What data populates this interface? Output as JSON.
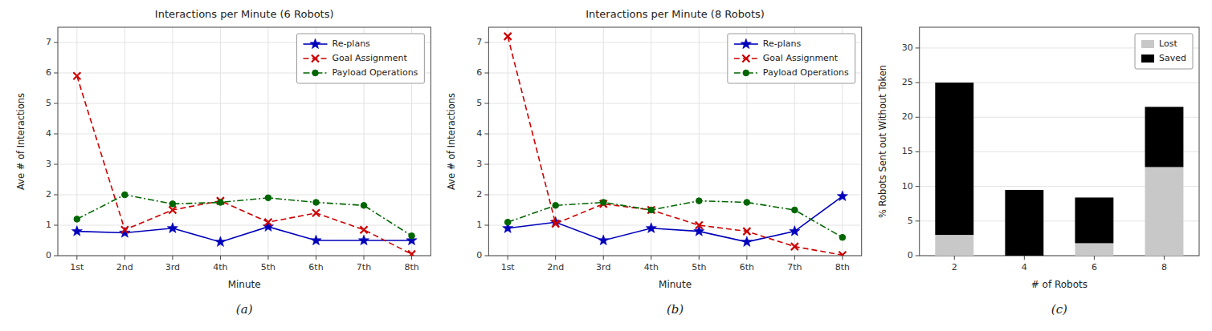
{
  "chart_data": [
    {
      "type": "line",
      "title": "Interactions per Minute (6 Robots)",
      "xlabel": "Minute",
      "ylabel": "Ave # of Interactions",
      "categories": [
        "1st",
        "2nd",
        "3rd",
        "4th",
        "5th",
        "6th",
        "7th",
        "8th"
      ],
      "series": [
        {
          "name": "Re-plans",
          "color": "#0000bb",
          "marker": "star",
          "line_style": "solid",
          "values": [
            0.8,
            0.75,
            0.9,
            0.45,
            0.95,
            0.5,
            0.5,
            0.5
          ]
        },
        {
          "name": "Goal Assignment",
          "color": "#cc0000",
          "marker": "x",
          "line_style": "dashed",
          "values": [
            5.9,
            0.85,
            1.5,
            1.8,
            1.1,
            1.4,
            0.85,
            0.05
          ]
        },
        {
          "name": "Payload Operations",
          "color": "#006600",
          "marker": "circle",
          "line_style": "dashdot",
          "values": [
            1.2,
            2.0,
            1.7,
            1.75,
            1.9,
            1.75,
            1.65,
            0.65
          ]
        }
      ],
      "ylim": [
        0,
        7.5
      ],
      "yticks": [
        0,
        1,
        2,
        3,
        4,
        5,
        6,
        7
      ],
      "grid": true,
      "legend": "upper right",
      "annotations": [
        "(a)"
      ]
    },
    {
      "type": "line",
      "title": "Interactions per Minute (8 Robots)",
      "xlabel": "Minute",
      "ylabel": "Ave # of Interactions",
      "categories": [
        "1st",
        "2nd",
        "3rd",
        "4th",
        "5th",
        "6th",
        "7th",
        "8th"
      ],
      "series": [
        {
          "name": "Re-plans",
          "color": "#0000bb",
          "marker": "star",
          "line_style": "solid",
          "values": [
            0.9,
            1.1,
            0.5,
            0.9,
            0.8,
            0.45,
            0.8,
            1.95
          ]
        },
        {
          "name": "Goal Assignment",
          "color": "#cc0000",
          "marker": "x",
          "line_style": "dashed",
          "values": [
            7.2,
            1.05,
            1.7,
            1.5,
            1.0,
            0.8,
            0.3,
            0.02
          ]
        },
        {
          "name": "Payload Operations",
          "color": "#006600",
          "marker": "circle",
          "line_style": "dashdot",
          "values": [
            1.1,
            1.65,
            1.75,
            1.5,
            1.8,
            1.75,
            1.5,
            0.6
          ]
        }
      ],
      "ylim": [
        0,
        7.5
      ],
      "yticks": [
        0,
        1,
        2,
        3,
        4,
        5,
        6,
        7
      ],
      "grid": true,
      "legend": "upper right",
      "annotations": [
        "(b)"
      ]
    },
    {
      "type": "bar",
      "stacked": true,
      "xlabel": "# of Robots",
      "ylabel": "% Robots Sent out Without Token",
      "categories": [
        "2",
        "4",
        "6",
        "8"
      ],
      "series": [
        {
          "name": "Lost",
          "color": "#c8c8c8",
          "values": [
            3.0,
            0.0,
            1.8,
            12.8
          ]
        },
        {
          "name": "Saved",
          "color": "#000000",
          "values": [
            22.0,
            9.5,
            6.6,
            8.7
          ]
        }
      ],
      "ylim": [
        0,
        33
      ],
      "yticks": [
        0,
        5,
        10,
        15,
        20,
        25,
        30
      ],
      "grid": "y",
      "legend": "upper right",
      "annotations": [
        "(c)"
      ]
    }
  ]
}
